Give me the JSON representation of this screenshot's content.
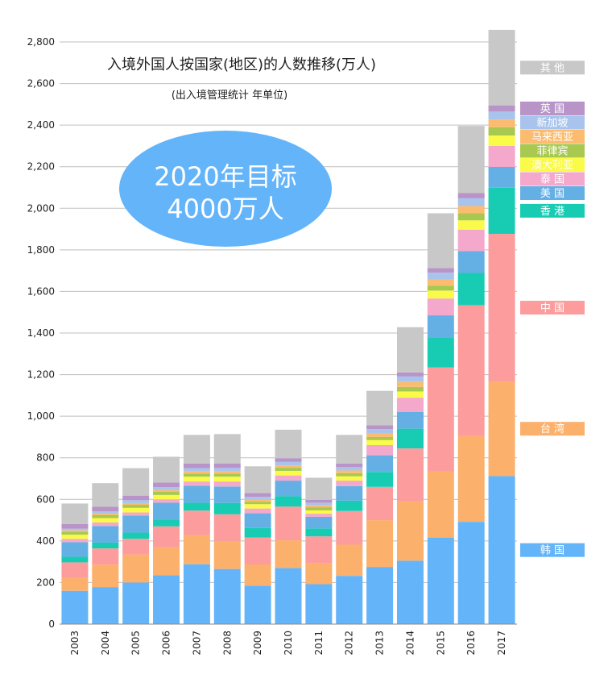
{
  "chart_data": {
    "type": "bar",
    "stacked": true,
    "title": "入境外国人按国家(地区)的人数推移(万人)",
    "subtitle": "(出入境管理统计 年单位)",
    "annotation": [
      "2020年目标",
      "4000万人"
    ],
    "categories": [
      "2003",
      "2004",
      "2005",
      "2006",
      "2007",
      "2008",
      "2009",
      "2010",
      "2011",
      "2012",
      "2013",
      "2014",
      "2015",
      "2016",
      "2017"
    ],
    "ylim": [
      0,
      2800
    ],
    "yticks": [
      0,
      200,
      400,
      600,
      800,
      1000,
      1200,
      1400,
      1600,
      1800,
      2000,
      2200,
      2400,
      2600,
      2800
    ],
    "ytick_labels": [
      "0",
      "200",
      "400",
      "600",
      "800",
      "1,000",
      "1,200",
      "1,400",
      "1,600",
      "1,800",
      "2,000",
      "2,200",
      "2,400",
      "2,600",
      "2,800"
    ],
    "grid": true,
    "legend_position": "right",
    "series": [
      {
        "name": "韩 国",
        "color": "#64b4fa",
        "values": [
          160,
          178,
          200,
          235,
          288,
          265,
          185,
          270,
          192,
          232,
          275,
          305,
          415,
          492,
          712
        ]
      },
      {
        "name": "台 湾",
        "color": "#fbb06c",
        "values": [
          65,
          108,
          135,
          135,
          140,
          135,
          102,
          133,
          100,
          150,
          225,
          285,
          320,
          412,
          455
        ]
      },
      {
        "name": "中 国",
        "color": "#fc9c9c",
        "values": [
          72,
          78,
          75,
          100,
          118,
          128,
          130,
          162,
          130,
          162,
          160,
          255,
          500,
          630,
          710
        ]
      },
      {
        "name": "香 港",
        "color": "#18ccb4",
        "values": [
          27,
          28,
          30,
          32,
          38,
          55,
          45,
          50,
          38,
          50,
          72,
          95,
          145,
          155,
          222
        ]
      },
      {
        "name": "美 国",
        "color": "#64b0e4",
        "values": [
          70,
          80,
          82,
          82,
          82,
          79,
          71,
          75,
          56,
          70,
          80,
          80,
          105,
          105,
          100
        ]
      },
      {
        "name": "泰 国",
        "color": "#f4a8cc",
        "values": [
          16,
          17,
          15,
          16,
          20,
          24,
          23,
          25,
          15,
          26,
          49,
          69,
          81,
          103,
          101
        ]
      },
      {
        "name": "澳大利亚",
        "color": "#fafa48",
        "values": [
          20,
          21,
          22,
          21,
          23,
          23,
          21,
          22,
          16,
          21,
          24,
          30,
          38,
          45,
          50
        ]
      },
      {
        "name": "菲律宾",
        "color": "#a8c850",
        "values": [
          15,
          15,
          15,
          15,
          15,
          15,
          12,
          15,
          15,
          15,
          15,
          22,
          24,
          35,
          40
        ]
      },
      {
        "name": "马来西亚",
        "color": "#fbbc70",
        "values": [
          6,
          8,
          8,
          8,
          10,
          10,
          9,
          11,
          9,
          13,
          17,
          25,
          30,
          34,
          37
        ]
      },
      {
        "name": "新加坡",
        "color": "#a8c4ec",
        "values": [
          8,
          10,
          14,
          15,
          16,
          17,
          14,
          17,
          13,
          16,
          21,
          25,
          32,
          37,
          38
        ]
      },
      {
        "name": "英 国",
        "color": "#b894c8",
        "values": [
          22,
          22,
          22,
          22,
          22,
          22,
          18,
          18,
          14,
          17,
          19,
          20,
          22,
          25,
          30
        ]
      },
      {
        "name": "其 他",
        "color": "#c8c8c8",
        "values": [
          99,
          113,
          132,
          124,
          138,
          141,
          129,
          137,
          106,
          138,
          165,
          217,
          264,
          323,
          363
        ]
      }
    ]
  }
}
